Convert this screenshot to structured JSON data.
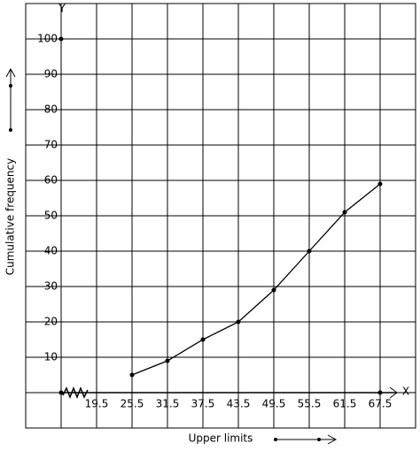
{
  "chart_data": {
    "type": "line",
    "x_label": "Upper limits",
    "y_label": "Cumulative frequency",
    "x_axis_name": "X",
    "y_axis_name": "Y",
    "x": [
      25.5,
      31.5,
      37.5,
      43.5,
      49.5,
      55.5,
      61.5,
      67.5
    ],
    "values": [
      5,
      9,
      15,
      20,
      29,
      40,
      51,
      59
    ],
    "color": "#000000",
    "xlim": [
      7.5,
      73.5
    ],
    "ylim": [
      -10,
      110
    ],
    "xticks": [
      19.5,
      25.5,
      31.5,
      37.5,
      43.5,
      49.5,
      55.5,
      61.5,
      67.5
    ],
    "yticks": [
      10,
      20,
      30,
      40,
      50,
      60,
      70,
      80,
      90,
      100
    ],
    "grid": true
  }
}
